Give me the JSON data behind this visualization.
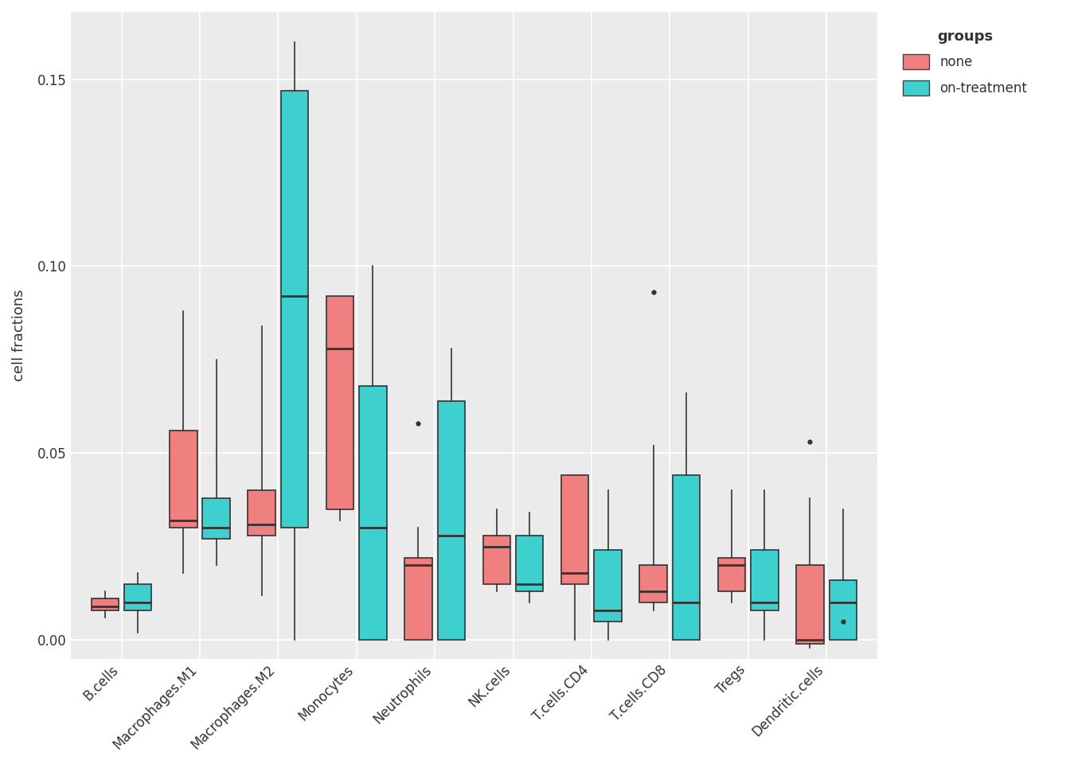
{
  "categories": [
    "B.cells",
    "Macrophages.M1",
    "Macrophages.M2",
    "Monocytes",
    "Neutrophils",
    "NK.cells",
    "T.cells.CD4",
    "T.cells.CD8",
    "Tregs",
    "Dendritic.cells"
  ],
  "color_none": "#F08080",
  "color_treatment": "#3ECFCF",
  "ylabel": "cell fractions",
  "legend_title": "groups",
  "background_color": "#EBEBEB",
  "grid_color": "#FFFFFF",
  "ylim": [
    -0.005,
    0.168
  ],
  "yticks": [
    0.0,
    0.05,
    0.1,
    0.15
  ],
  "none_stats": {
    "B.cells": {
      "whislo": 0.006,
      "q1": 0.008,
      "med": 0.009,
      "q3": 0.011,
      "whishi": 0.013
    },
    "Macrophages.M1": {
      "whislo": 0.018,
      "q1": 0.03,
      "med": 0.032,
      "q3": 0.056,
      "whishi": 0.088
    },
    "Macrophages.M2": {
      "whislo": 0.012,
      "q1": 0.028,
      "med": 0.031,
      "q3": 0.04,
      "whishi": 0.084
    },
    "Monocytes": {
      "whislo": 0.032,
      "q1": 0.035,
      "med": 0.078,
      "q3": 0.092,
      "whishi": 0.092
    },
    "Neutrophils": {
      "whislo": 0.0,
      "q1": 0.0,
      "med": 0.02,
      "q3": 0.022,
      "whishi": 0.03
    },
    "NK.cells": {
      "whislo": 0.013,
      "q1": 0.015,
      "med": 0.025,
      "q3": 0.028,
      "whishi": 0.035
    },
    "T.cells.CD4": {
      "whislo": 0.0,
      "q1": 0.015,
      "med": 0.018,
      "q3": 0.044,
      "whishi": 0.044
    },
    "T.cells.CD8": {
      "whislo": 0.008,
      "q1": 0.01,
      "med": 0.013,
      "q3": 0.02,
      "whishi": 0.052
    },
    "Tregs": {
      "whislo": 0.01,
      "q1": 0.013,
      "med": 0.02,
      "q3": 0.022,
      "whishi": 0.04
    },
    "Dendritic.cells": {
      "whislo": -0.002,
      "q1": -0.001,
      "med": 0.0,
      "q3": 0.02,
      "whishi": 0.038
    }
  },
  "treatment_stats": {
    "B.cells": {
      "whislo": 0.002,
      "q1": 0.008,
      "med": 0.01,
      "q3": 0.015,
      "whishi": 0.018
    },
    "Macrophages.M1": {
      "whislo": 0.02,
      "q1": 0.027,
      "med": 0.03,
      "q3": 0.038,
      "whishi": 0.075
    },
    "Macrophages.M2": {
      "whislo": 0.0,
      "q1": 0.03,
      "med": 0.092,
      "q3": 0.147,
      "whishi": 0.16
    },
    "Monocytes": {
      "whislo": 0.0,
      "q1": 0.0,
      "med": 0.03,
      "q3": 0.068,
      "whishi": 0.1
    },
    "Neutrophils": {
      "whislo": 0.0,
      "q1": 0.0,
      "med": 0.028,
      "q3": 0.064,
      "whishi": 0.078
    },
    "NK.cells": {
      "whislo": 0.01,
      "q1": 0.013,
      "med": 0.015,
      "q3": 0.028,
      "whishi": 0.034
    },
    "T.cells.CD4": {
      "whislo": 0.0,
      "q1": 0.005,
      "med": 0.008,
      "q3": 0.024,
      "whishi": 0.04
    },
    "T.cells.CD8": {
      "whislo": 0.0,
      "q1": 0.0,
      "med": 0.01,
      "q3": 0.044,
      "whishi": 0.066
    },
    "Tregs": {
      "whislo": 0.0,
      "q1": 0.008,
      "med": 0.01,
      "q3": 0.024,
      "whishi": 0.04
    },
    "Dendritic.cells": {
      "whislo": 0.0,
      "q1": 0.0,
      "med": 0.01,
      "q3": 0.016,
      "whishi": 0.035
    }
  },
  "none_outliers": {
    "Neutrophils": [
      0.058
    ],
    "T.cells.CD8": [
      0.093
    ],
    "Dendritic.cells": [
      0.053
    ]
  },
  "treatment_outliers": {
    "Dendritic.cells": [
      0.005
    ]
  },
  "box_width": 0.35,
  "linewidth": 1.2
}
